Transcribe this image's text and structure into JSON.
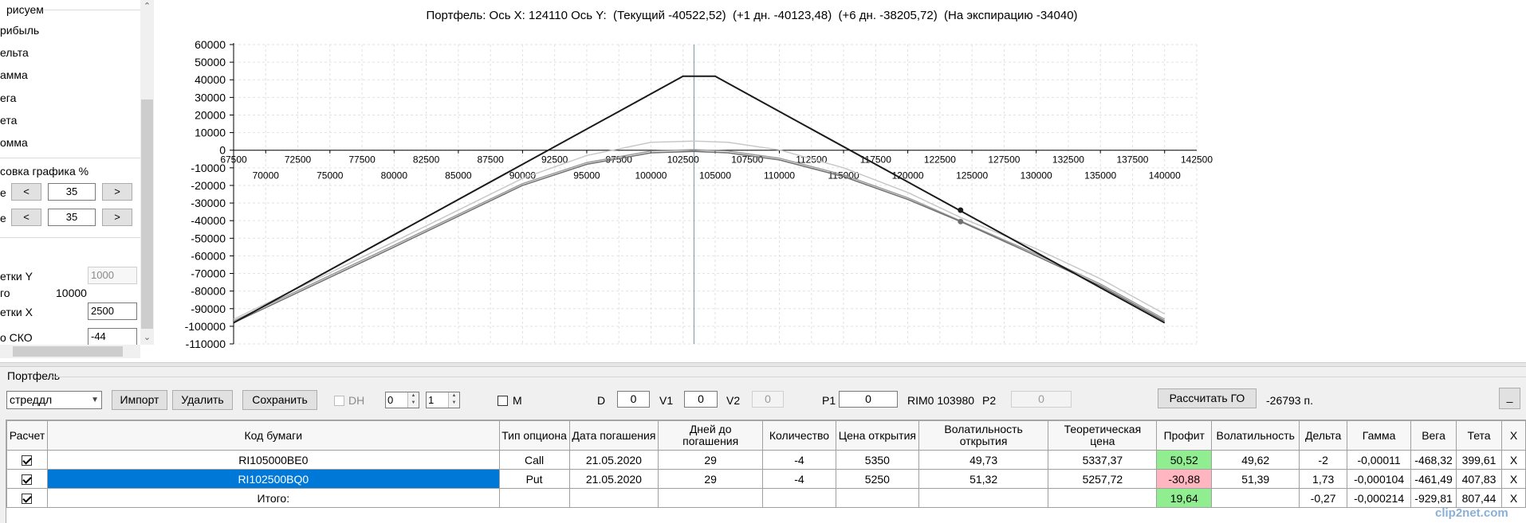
{
  "left_panel": {
    "group_title": "рисуем",
    "checks": [
      "рибыль",
      "ельта",
      "амма",
      "ега",
      "ета",
      "омма"
    ],
    "scale_title": "совка графика %",
    "scale_row1": {
      "label": "е",
      "dec": "<",
      "value": "35",
      "inc": ">"
    },
    "scale_row2": {
      "label": "е",
      "dec": "<",
      "value": "35",
      "inc": ">"
    },
    "grid_y_label": "етки Y",
    "grid_y_value": "1000",
    "total_label": "го",
    "total_value": "10000",
    "grid_x_label": "етки X",
    "grid_x_value": "2500",
    "sko_label": "о СКО",
    "sko_value": "-44"
  },
  "chart": {
    "title": "Портфель: Ось X: 124110 Ось Y:  (Текущий -40522,52)  (+1 дн. -40123,48)  (+6 дн. -38205,72)  (На экспирацию -34040)",
    "y_ticks": [
      "60000",
      "50000",
      "40000",
      "30000",
      "20000",
      "10000",
      "0",
      "-10000",
      "-20000",
      "-30000",
      "-40000",
      "-50000",
      "-60000",
      "-70000",
      "-80000",
      "-90000",
      "-100000",
      "-110000"
    ],
    "x_ticks_top": [
      "67500",
      "72500",
      "77500",
      "82500",
      "87500",
      "92500",
      "97500",
      "102500",
      "107500",
      "112500",
      "117500",
      "122500",
      "127500",
      "132500",
      "137500",
      "142500"
    ],
    "x_ticks_bottom": [
      "70000",
      "75000",
      "80000",
      "85000",
      "90000",
      "95000",
      "100000",
      "105000",
      "110000",
      "115000",
      "120000",
      "125000",
      "130000",
      "135000",
      "140000"
    ]
  },
  "chart_data": {
    "type": "line",
    "title": "Портфель: Ось X: 124110 Ось Y:  (Текущий -40522,52)  (+1 дн. -40123,48)  (+6 дн. -38205,72)  (На экспирацию -34040)",
    "xlim": [
      67500,
      142500
    ],
    "ylim": [
      -110000,
      60000
    ],
    "grid": true,
    "cursor_x": 103350,
    "series": [
      {
        "color": "#1a1a1a",
        "points": [
          [
            67500,
            -98000
          ],
          [
            102500,
            42000
          ],
          [
            105000,
            42000
          ],
          [
            140000,
            -98000
          ]
        ]
      },
      {
        "color": "#707070",
        "points": [
          [
            67500,
            -98000
          ],
          [
            80000,
            -55000
          ],
          [
            90000,
            -20000
          ],
          [
            95000,
            -8000
          ],
          [
            100000,
            -1500
          ],
          [
            103350,
            -700
          ],
          [
            106000,
            -1500
          ],
          [
            110000,
            -5500
          ],
          [
            115000,
            -15000
          ],
          [
            120000,
            -28000
          ],
          [
            124110,
            -40522
          ],
          [
            130000,
            -60000
          ],
          [
            135000,
            -77000
          ],
          [
            140000,
            -97000
          ]
        ]
      },
      {
        "color": "#9a9a9a",
        "points": [
          [
            67500,
            -97000
          ],
          [
            80000,
            -54000
          ],
          [
            90000,
            -19000
          ],
          [
            95000,
            -7000
          ],
          [
            100000,
            -500
          ],
          [
            103350,
            300
          ],
          [
            106000,
            -500
          ],
          [
            110000,
            -4500
          ],
          [
            115000,
            -14000
          ],
          [
            120000,
            -27000
          ],
          [
            124110,
            -40123
          ],
          [
            130000,
            -59000
          ],
          [
            135000,
            -76000
          ],
          [
            140000,
            -96000
          ]
        ]
      },
      {
        "color": "#c8c8c8",
        "points": [
          [
            67500,
            -96000
          ],
          [
            80000,
            -52000
          ],
          [
            90000,
            -16000
          ],
          [
            95000,
            -3000
          ],
          [
            100000,
            4500
          ],
          [
            103350,
            5200
          ],
          [
            106000,
            4500
          ],
          [
            110000,
            200
          ],
          [
            115000,
            -10000
          ],
          [
            120000,
            -24000
          ],
          [
            124110,
            -38205
          ],
          [
            130000,
            -56000
          ],
          [
            135000,
            -73000
          ],
          [
            140000,
            -93000
          ]
        ]
      }
    ],
    "markers": [
      [
        124110,
        -34040
      ],
      [
        124110,
        -40522
      ]
    ]
  },
  "portfolio": {
    "title": "Портфель",
    "combo_value": "стреддл",
    "import": "Импорт",
    "delete": "Удалить",
    "save": "Сохранить",
    "dh_label": "DH",
    "spin1": "0",
    "spin2": "1",
    "m_label": "M",
    "d_label": "D",
    "d_value": "0",
    "v1_label": "V1",
    "v1_value": "0",
    "v2_label": "V2",
    "v2_value": "0",
    "p1_label": "P1",
    "p1_value": "0",
    "rim_text": "RIM0 103980",
    "p2_label": "P2",
    "p2_value": "0",
    "calc_go": "Рассчитать ГО",
    "go_value": "-26793 п.",
    "collapse": "_"
  },
  "grid": {
    "headers": [
      "Расчет",
      "Код бумаги",
      "Тип опциона",
      "Дата погашения",
      "Дней до погашения",
      "Количество",
      "Цена открытия",
      "Волатильность открытия",
      "Теоретическая цена",
      "Профит",
      "Волатильность",
      "Дельта",
      "Гамма",
      "Вега",
      "Тета",
      "X"
    ],
    "rows": [
      {
        "code": "RI105000BE0",
        "type": "Call",
        "date": "21.05.2020",
        "days": "29",
        "qty": "-4",
        "open": "5350",
        "vol_open": "49,73",
        "theo": "5337,37",
        "profit": "50,52",
        "vol": "49,62",
        "delta": "-2",
        "gamma": "-0,00011",
        "vega": "-468,32",
        "theta": "399,61",
        "x": "X"
      },
      {
        "code": "RI102500BQ0",
        "type": "Put",
        "date": "21.05.2020",
        "days": "29",
        "qty": "-4",
        "open": "5250",
        "vol_open": "51,32",
        "theo": "5257,72",
        "profit": "-30,88",
        "vol": "51,39",
        "delta": "1,73",
        "gamma": "-0,000104",
        "vega": "-461,49",
        "theta": "407,83",
        "x": "X"
      }
    ],
    "total": {
      "code": "Итого:",
      "profit": "19,64",
      "delta": "-0,27",
      "gamma": "-0,000214",
      "vega": "-929,81",
      "theta": "807,44",
      "x": "X"
    }
  },
  "watermark": "clip2net.com"
}
